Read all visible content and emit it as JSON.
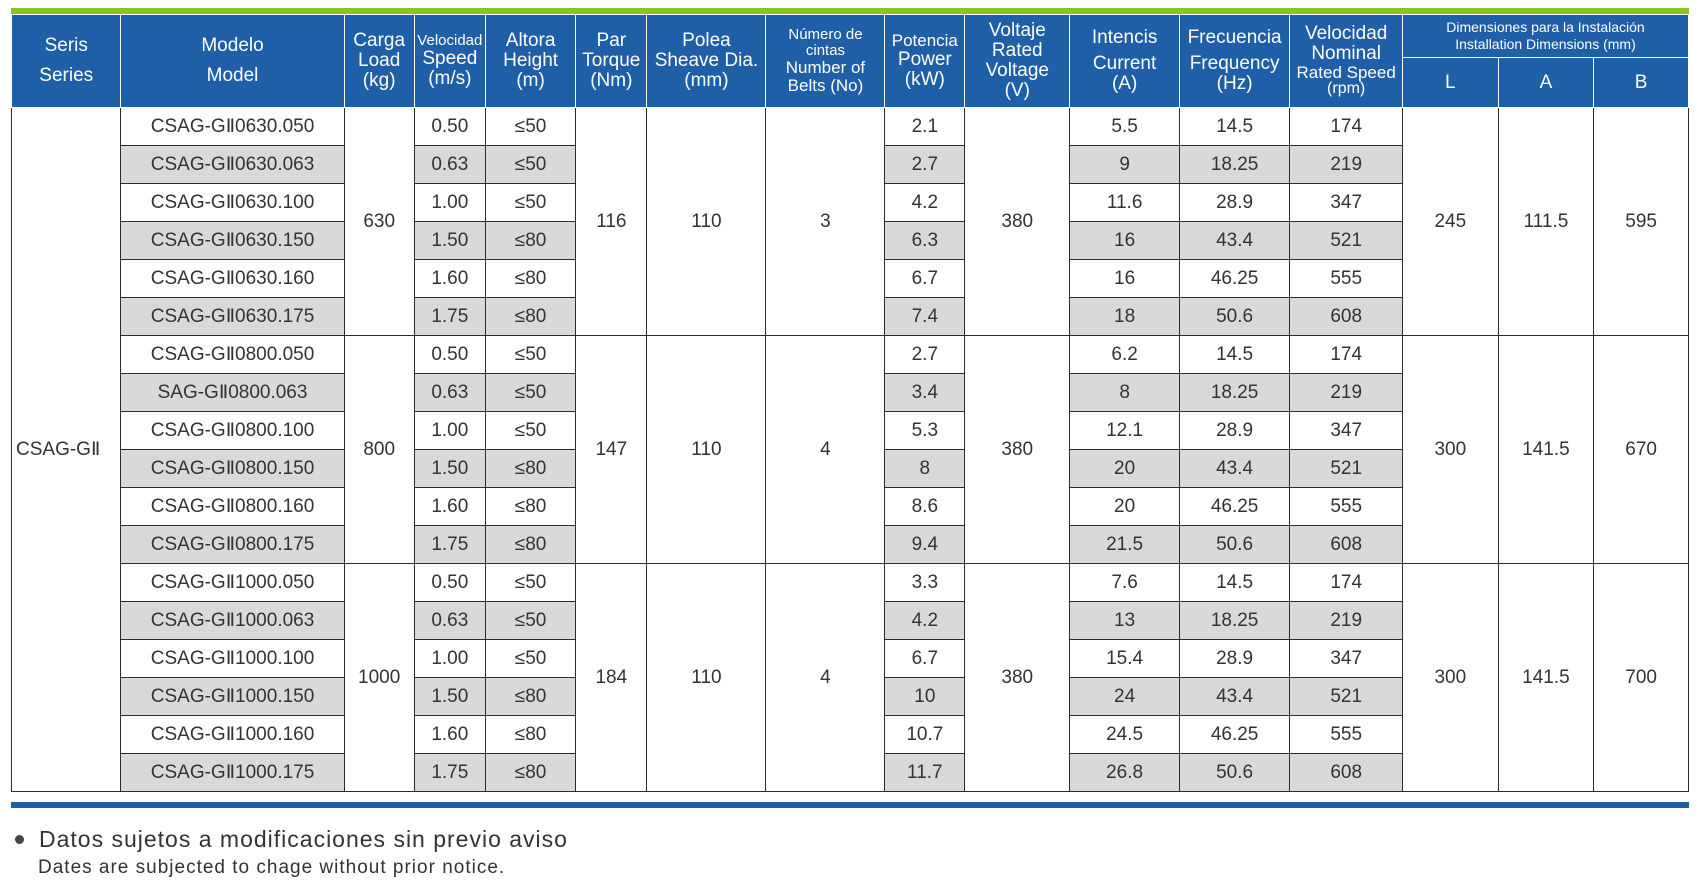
{
  "header": {
    "series": {
      "es": "Seris",
      "en": "Series"
    },
    "model": {
      "es": "Modelo",
      "en": "Model"
    },
    "load": {
      "es": "Carga",
      "en": "Load",
      "unit": "(kg)"
    },
    "speed": {
      "es": "Velocidad",
      "en": "Speed",
      "unit": "(m/s)"
    },
    "height": {
      "es": "Altora",
      "en": "Height",
      "unit": "(m)"
    },
    "torque": {
      "es": "Par",
      "en": "Torque",
      "unit": "(Nm)"
    },
    "sheave": {
      "es": "Polea",
      "en": "Sheave Dia.",
      "unit": "(mm)"
    },
    "belts": {
      "es": "Número de cintas",
      "en": "Number of Belts (No)"
    },
    "power": {
      "es": "Potencia",
      "en": "Power",
      "unit": "(kW)"
    },
    "voltage": {
      "es": "Voltaje",
      "en": "Rated Voltage",
      "unit": "(V)"
    },
    "current": {
      "es": "Intencis",
      "en": "Current",
      "unit": "(A)"
    },
    "frequency": {
      "es": "Frecuencia",
      "en": "Frequency",
      "unit": "(Hz)"
    },
    "rated_speed": {
      "es": "Velocidad Nominal",
      "en": "Rated Speed",
      "unit": "(rpm)"
    },
    "dimensions": {
      "es": "Dimensiones para la Instalación",
      "en": "Installation Dimensions (mm)"
    },
    "dim_l": "L",
    "dim_a": "A",
    "dim_b": "B"
  },
  "series_name": "CSAG-GⅡ",
  "groups": [
    {
      "load": "630",
      "torque": "116",
      "sheave": "110",
      "belts": "3",
      "voltage": "380",
      "L": "245",
      "A": "111.5",
      "B": "595",
      "rows": [
        {
          "model": "CSAG-GⅡ0630.050",
          "speed": "0.50",
          "height": "≤50",
          "power": "2.1",
          "current": "5.5",
          "frequency": "14.5",
          "rpm": "174"
        },
        {
          "model": "CSAG-GⅡ0630.063",
          "speed": "0.63",
          "height": "≤50",
          "power": "2.7",
          "current": "9",
          "frequency": "18.25",
          "rpm": "219"
        },
        {
          "model": "CSAG-GⅡ0630.100",
          "speed": "1.00",
          "height": "≤50",
          "power": "4.2",
          "current": "11.6",
          "frequency": "28.9",
          "rpm": "347"
        },
        {
          "model": "CSAG-GⅡ0630.150",
          "speed": "1.50",
          "height": "≤80",
          "power": "6.3",
          "current": "16",
          "frequency": "43.4",
          "rpm": "521"
        },
        {
          "model": "CSAG-GⅡ0630.160",
          "speed": "1.60",
          "height": "≤80",
          "power": "6.7",
          "current": "16",
          "frequency": "46.25",
          "rpm": "555"
        },
        {
          "model": "CSAG-GⅡ0630.175",
          "speed": "1.75",
          "height": "≤80",
          "power": "7.4",
          "current": "18",
          "frequency": "50.6",
          "rpm": "608"
        }
      ]
    },
    {
      "load": "800",
      "torque": "147",
      "sheave": "110",
      "belts": "4",
      "voltage": "380",
      "L": "300",
      "A": "141.5",
      "B": "670",
      "rows": [
        {
          "model": "CSAG-GⅡ0800.050",
          "speed": "0.50",
          "height": "≤50",
          "power": "2.7",
          "current": "6.2",
          "frequency": "14.5",
          "rpm": "174"
        },
        {
          "model": "SAG-GⅡ0800.063",
          "speed": "0.63",
          "height": "≤50",
          "power": "3.4",
          "current": "8",
          "frequency": "18.25",
          "rpm": "219"
        },
        {
          "model": "CSAG-GⅡ0800.100",
          "speed": "1.00",
          "height": "≤50",
          "power": "5.3",
          "current": "12.1",
          "frequency": "28.9",
          "rpm": "347"
        },
        {
          "model": "CSAG-GⅡ0800.150",
          "speed": "1.50",
          "height": "≤80",
          "power": "8",
          "current": "20",
          "frequency": "43.4",
          "rpm": "521"
        },
        {
          "model": "CSAG-GⅡ0800.160",
          "speed": "1.60",
          "height": "≤80",
          "power": "8.6",
          "current": "20",
          "frequency": "46.25",
          "rpm": "555"
        },
        {
          "model": "CSAG-GⅡ0800.175",
          "speed": "1.75",
          "height": "≤80",
          "power": "9.4",
          "current": "21.5",
          "frequency": "50.6",
          "rpm": "608"
        }
      ]
    },
    {
      "load": "1000",
      "torque": "184",
      "sheave": "110",
      "belts": "4",
      "voltage": "380",
      "L": "300",
      "A": "141.5",
      "B": "700",
      "rows": [
        {
          "model": "CSAG-GⅡ1000.050",
          "speed": "0.50",
          "height": "≤50",
          "power": "3.3",
          "current": "7.6",
          "frequency": "14.5",
          "rpm": "174"
        },
        {
          "model": "CSAG-GⅡ1000.063",
          "speed": "0.63",
          "height": "≤50",
          "power": "4.2",
          "current": "13",
          "frequency": "18.25",
          "rpm": "219"
        },
        {
          "model": "CSAG-GⅡ1000.100",
          "speed": "1.00",
          "height": "≤50",
          "power": "6.7",
          "current": "15.4",
          "frequency": "28.9",
          "rpm": "347"
        },
        {
          "model": "CSAG-GⅡ1000.150",
          "speed": "1.50",
          "height": "≤80",
          "power": "10",
          "current": "24",
          "frequency": "43.4",
          "rpm": "521"
        },
        {
          "model": "CSAG-GⅡ1000.160",
          "speed": "1.60",
          "height": "≤80",
          "power": "10.7",
          "current": "24.5",
          "frequency": "46.25",
          "rpm": "555"
        },
        {
          "model": "CSAG-GⅡ1000.175",
          "speed": "1.75",
          "height": "≤80",
          "power": "11.7",
          "current": "26.8",
          "frequency": "50.6",
          "rpm": "608"
        }
      ]
    }
  ],
  "notes": {
    "es": "Datos sujetos a modificaciones sin previo aviso",
    "en": "Dates are subjected to chage without prior notice."
  }
}
